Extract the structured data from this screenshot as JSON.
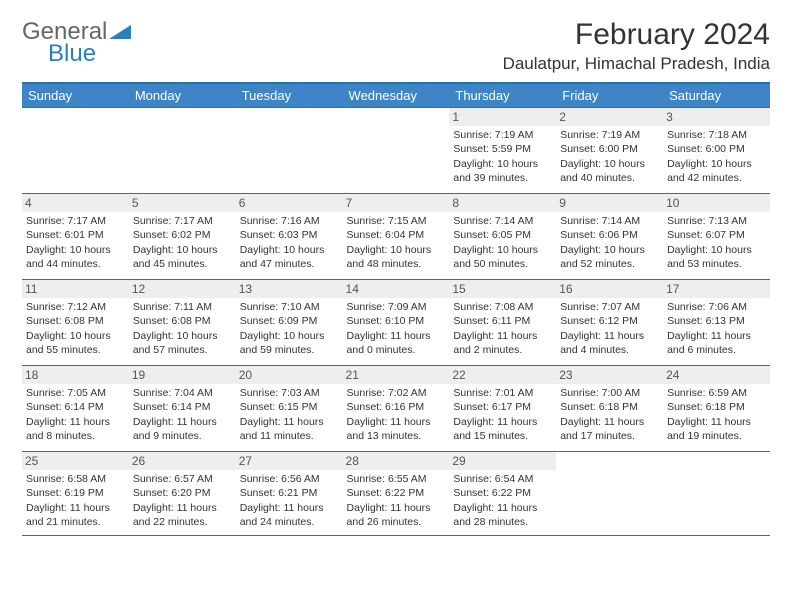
{
  "brand": {
    "part1": "General",
    "part2": "Blue"
  },
  "title": {
    "month": "February 2024",
    "location": "Daulatpur, Himachal Pradesh, India"
  },
  "colors": {
    "header_bg": "#3d85c6",
    "header_text": "#ffffff",
    "rule": "#2a71a8",
    "daynum_bg": "#eeeeee",
    "text": "#333333",
    "brand_blue": "#2a7fbf",
    "brand_gray": "#666666",
    "page_bg": "#ffffff"
  },
  "layout": {
    "grid_cols": 7,
    "grid_rows": 5,
    "first_weekday_index": 4
  },
  "weekdays": [
    "Sunday",
    "Monday",
    "Tuesday",
    "Wednesday",
    "Thursday",
    "Friday",
    "Saturday"
  ],
  "days": [
    {
      "n": 1,
      "sunrise": "7:19 AM",
      "sunset": "5:59 PM",
      "daylight": "10 hours and 39 minutes."
    },
    {
      "n": 2,
      "sunrise": "7:19 AM",
      "sunset": "6:00 PM",
      "daylight": "10 hours and 40 minutes."
    },
    {
      "n": 3,
      "sunrise": "7:18 AM",
      "sunset": "6:00 PM",
      "daylight": "10 hours and 42 minutes."
    },
    {
      "n": 4,
      "sunrise": "7:17 AM",
      "sunset": "6:01 PM",
      "daylight": "10 hours and 44 minutes."
    },
    {
      "n": 5,
      "sunrise": "7:17 AM",
      "sunset": "6:02 PM",
      "daylight": "10 hours and 45 minutes."
    },
    {
      "n": 6,
      "sunrise": "7:16 AM",
      "sunset": "6:03 PM",
      "daylight": "10 hours and 47 minutes."
    },
    {
      "n": 7,
      "sunrise": "7:15 AM",
      "sunset": "6:04 PM",
      "daylight": "10 hours and 48 minutes."
    },
    {
      "n": 8,
      "sunrise": "7:14 AM",
      "sunset": "6:05 PM",
      "daylight": "10 hours and 50 minutes."
    },
    {
      "n": 9,
      "sunrise": "7:14 AM",
      "sunset": "6:06 PM",
      "daylight": "10 hours and 52 minutes."
    },
    {
      "n": 10,
      "sunrise": "7:13 AM",
      "sunset": "6:07 PM",
      "daylight": "10 hours and 53 minutes."
    },
    {
      "n": 11,
      "sunrise": "7:12 AM",
      "sunset": "6:08 PM",
      "daylight": "10 hours and 55 minutes."
    },
    {
      "n": 12,
      "sunrise": "7:11 AM",
      "sunset": "6:08 PM",
      "daylight": "10 hours and 57 minutes."
    },
    {
      "n": 13,
      "sunrise": "7:10 AM",
      "sunset": "6:09 PM",
      "daylight": "10 hours and 59 minutes."
    },
    {
      "n": 14,
      "sunrise": "7:09 AM",
      "sunset": "6:10 PM",
      "daylight": "11 hours and 0 minutes."
    },
    {
      "n": 15,
      "sunrise": "7:08 AM",
      "sunset": "6:11 PM",
      "daylight": "11 hours and 2 minutes."
    },
    {
      "n": 16,
      "sunrise": "7:07 AM",
      "sunset": "6:12 PM",
      "daylight": "11 hours and 4 minutes."
    },
    {
      "n": 17,
      "sunrise": "7:06 AM",
      "sunset": "6:13 PM",
      "daylight": "11 hours and 6 minutes."
    },
    {
      "n": 18,
      "sunrise": "7:05 AM",
      "sunset": "6:14 PM",
      "daylight": "11 hours and 8 minutes."
    },
    {
      "n": 19,
      "sunrise": "7:04 AM",
      "sunset": "6:14 PM",
      "daylight": "11 hours and 9 minutes."
    },
    {
      "n": 20,
      "sunrise": "7:03 AM",
      "sunset": "6:15 PM",
      "daylight": "11 hours and 11 minutes."
    },
    {
      "n": 21,
      "sunrise": "7:02 AM",
      "sunset": "6:16 PM",
      "daylight": "11 hours and 13 minutes."
    },
    {
      "n": 22,
      "sunrise": "7:01 AM",
      "sunset": "6:17 PM",
      "daylight": "11 hours and 15 minutes."
    },
    {
      "n": 23,
      "sunrise": "7:00 AM",
      "sunset": "6:18 PM",
      "daylight": "11 hours and 17 minutes."
    },
    {
      "n": 24,
      "sunrise": "6:59 AM",
      "sunset": "6:18 PM",
      "daylight": "11 hours and 19 minutes."
    },
    {
      "n": 25,
      "sunrise": "6:58 AM",
      "sunset": "6:19 PM",
      "daylight": "11 hours and 21 minutes."
    },
    {
      "n": 26,
      "sunrise": "6:57 AM",
      "sunset": "6:20 PM",
      "daylight": "11 hours and 22 minutes."
    },
    {
      "n": 27,
      "sunrise": "6:56 AM",
      "sunset": "6:21 PM",
      "daylight": "11 hours and 24 minutes."
    },
    {
      "n": 28,
      "sunrise": "6:55 AM",
      "sunset": "6:22 PM",
      "daylight": "11 hours and 26 minutes."
    },
    {
      "n": 29,
      "sunrise": "6:54 AM",
      "sunset": "6:22 PM",
      "daylight": "11 hours and 28 minutes."
    }
  ],
  "labels": {
    "sunrise": "Sunrise: ",
    "sunset": "Sunset: ",
    "daylight": "Daylight: "
  }
}
